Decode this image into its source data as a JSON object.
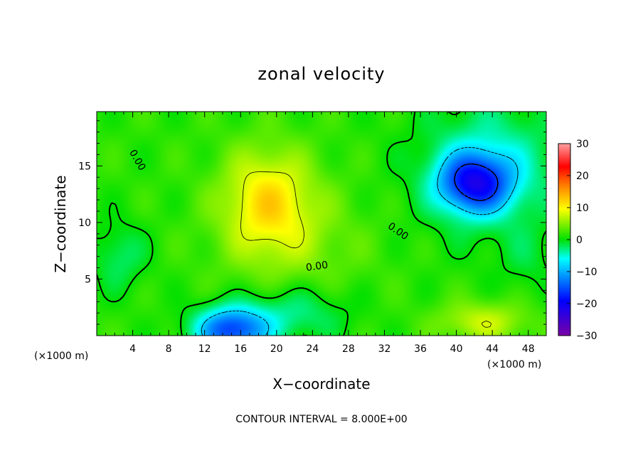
{
  "chart_data": {
    "type": "heatmap",
    "title": "zonal velocity",
    "xlabel": "X−coordinate",
    "ylabel": "Z−coordinate",
    "x_unit_label": "(×1000 m)",
    "y_unit_label": "(×1000 m)",
    "xlim": [
      0,
      50
    ],
    "ylim": [
      0,
      19.8
    ],
    "x_ticks": [
      4,
      8,
      12,
      16,
      20,
      24,
      28,
      32,
      36,
      40,
      44,
      48
    ],
    "x_tick_labels": [
      "4",
      "8",
      "12",
      "16",
      "20",
      "24",
      "28",
      "32",
      "36",
      "40",
      "44",
      "48"
    ],
    "y_ticks": [
      5,
      10,
      15
    ],
    "y_tick_labels": [
      "5",
      "10",
      "15"
    ],
    "colorbar": {
      "min": -30,
      "max": 30,
      "ticks": [
        -30,
        -20,
        -10,
        0,
        10,
        20,
        30
      ],
      "tick_labels": [
        "−30",
        "−20",
        "−10",
        "0",
        "10",
        "20",
        "30"
      ],
      "stops": [
        "#7a00a8",
        "#0000ff",
        "#00a0ff",
        "#00ffff",
        "#00e000",
        "#ffff00",
        "#ff8000",
        "#ff0000",
        "#ffa0a0"
      ]
    },
    "field_features": [
      {
        "kind": "positive",
        "x": 19,
        "z": 12,
        "peak": 10
      },
      {
        "kind": "positive",
        "x": 19,
        "z": 16,
        "peak": 8
      },
      {
        "kind": "negative",
        "x": 42,
        "z": 13.5,
        "peak": -18
      },
      {
        "kind": "negative",
        "x": 15,
        "z": 1,
        "peak": -17
      },
      {
        "kind": "positive",
        "x": 43,
        "z": 1.5,
        "peak": 7
      },
      {
        "kind": "negative",
        "x": 3,
        "z": 7,
        "peak": -4
      }
    ],
    "contour_labels": [
      {
        "text": "0.00",
        "x": 4.5,
        "z": 15.5,
        "angle": 60
      },
      {
        "text": "0.00",
        "x": 24.5,
        "z": 6.1,
        "angle": -8
      },
      {
        "text": "0.00",
        "x": 33.5,
        "z": 9.2,
        "angle": 35
      }
    ],
    "annotation": "CONTOUR INTERVAL = 8.000E+00"
  }
}
